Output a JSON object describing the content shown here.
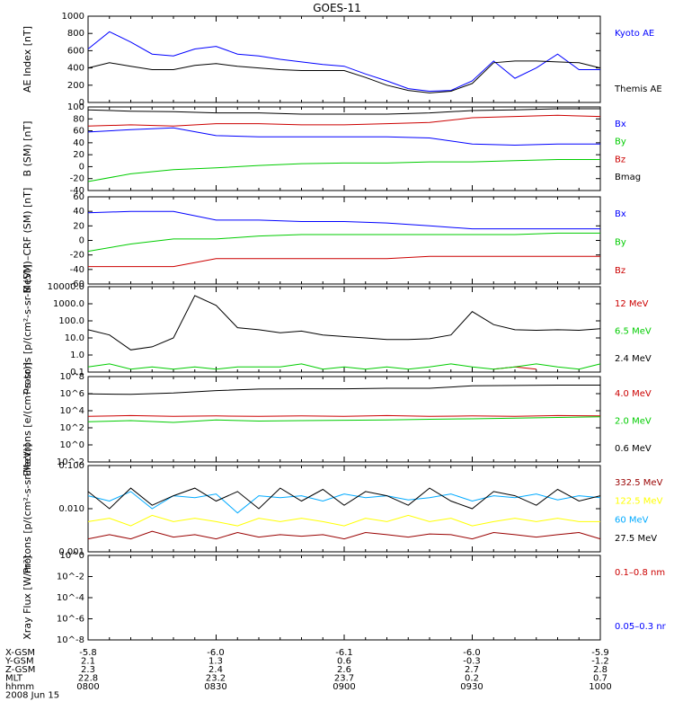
{
  "title": "GOES-11",
  "footer": {
    "date": "2008 Jun 15",
    "rows": [
      {
        "label": "X-GSM",
        "values": [
          "-5.8",
          "-6.0",
          "-6.1",
          "-6.0",
          "-5.9"
        ]
      },
      {
        "label": "Y-GSM",
        "values": [
          "2.1",
          "1.3",
          "0.6",
          "-0.3",
          "-1.2"
        ]
      },
      {
        "label": "Z-GSM",
        "values": [
          "2.3",
          "2.4",
          "2.6",
          "2.7",
          "2.8"
        ]
      },
      {
        "label": "MLT",
        "values": [
          "22.8",
          "23.2",
          "23.7",
          "0.2",
          "0.7"
        ]
      },
      {
        "label": "hhmm",
        "values": [
          "0800",
          "0830",
          "0900",
          "0930",
          "1000"
        ]
      }
    ]
  },
  "colors": {
    "black": "#000000",
    "blue": "#0000ff",
    "red": "#cc0000",
    "green": "#00cc00",
    "yellow": "#ffff00",
    "cyan": "#00aaff",
    "darkred": "#990000"
  },
  "chart_data": [
    {
      "type": "line",
      "ylabel": "AE Index [nT]",
      "ylim": [
        0,
        1000
      ],
      "yticks": [
        "1000",
        "800",
        "600",
        "400",
        "200",
        "0"
      ],
      "legend": [
        "Kyoto AE",
        "Themis AE"
      ],
      "x": [
        0,
        5,
        10,
        15,
        20,
        25,
        30,
        35,
        40,
        45,
        50,
        55,
        60,
        65,
        70,
        75,
        80,
        85,
        90,
        95,
        100,
        105,
        110,
        115,
        120
      ],
      "series": [
        {
          "name": "Kyoto AE",
          "color": "#0000ff",
          "values": [
            620,
            820,
            700,
            560,
            540,
            620,
            650,
            560,
            540,
            500,
            470,
            440,
            420,
            330,
            250,
            160,
            130,
            140,
            250,
            480,
            280,
            400,
            560,
            380,
            380
          ]
        },
        {
          "name": "Themis AE",
          "color": "#000000",
          "values": [
            400,
            460,
            420,
            380,
            380,
            430,
            450,
            420,
            400,
            380,
            370,
            370,
            370,
            290,
            200,
            140,
            110,
            130,
            220,
            460,
            480,
            480,
            470,
            460,
            400
          ]
        }
      ]
    },
    {
      "type": "line",
      "ylabel": "B (SM) [nT]",
      "ylim": [
        -40,
        100
      ],
      "yticks": [
        "100",
        "80",
        "60",
        "40",
        "20",
        "0",
        "-20",
        "-40"
      ],
      "legend": [
        "Bx",
        "By",
        "Bz",
        "Bmag"
      ],
      "x": [
        0,
        10,
        20,
        30,
        40,
        50,
        60,
        70,
        80,
        90,
        100,
        110,
        120
      ],
      "series": [
        {
          "name": "Bx",
          "color": "#0000ff",
          "values": [
            58,
            62,
            65,
            52,
            50,
            50,
            50,
            50,
            48,
            38,
            36,
            38,
            38
          ]
        },
        {
          "name": "By",
          "color": "#00cc00",
          "values": [
            -25,
            -12,
            -5,
            -2,
            2,
            5,
            6,
            6,
            8,
            8,
            10,
            12,
            12
          ]
        },
        {
          "name": "Bz",
          "color": "#cc0000",
          "values": [
            68,
            70,
            68,
            72,
            72,
            70,
            70,
            72,
            74,
            82,
            84,
            86,
            84
          ]
        },
        {
          "name": "Bmag",
          "color": "#000000",
          "values": [
            95,
            93,
            92,
            90,
            90,
            88,
            88,
            88,
            90,
            94,
            95,
            97,
            97
          ]
        }
      ]
    },
    {
      "type": "line",
      "ylabel": "B (SM)–CRF (SM) [nT]",
      "ylim": [
        -60,
        60
      ],
      "yticks": [
        "60",
        "40",
        "20",
        "0",
        "-20",
        "-40",
        "-60"
      ],
      "legend": [
        "Bx",
        "By",
        "Bz"
      ],
      "x": [
        0,
        10,
        20,
        30,
        40,
        50,
        60,
        70,
        80,
        90,
        100,
        110,
        120
      ],
      "series": [
        {
          "name": "Bx",
          "color": "#0000ff",
          "values": [
            38,
            40,
            40,
            28,
            28,
            26,
            26,
            24,
            20,
            16,
            16,
            16,
            16
          ]
        },
        {
          "name": "By",
          "color": "#00cc00",
          "values": [
            -15,
            -5,
            2,
            2,
            6,
            8,
            8,
            8,
            8,
            8,
            8,
            10,
            10
          ]
        },
        {
          "name": "Bz",
          "color": "#cc0000",
          "values": [
            -36,
            -36,
            -36,
            -25,
            -25,
            -25,
            -25,
            -25,
            -22,
            -22,
            -22,
            -22,
            -22
          ]
        }
      ]
    },
    {
      "type": "line",
      "ylabel": "Protons [p/(cm²-s-sr-MeV)]",
      "ylim": [
        0.1,
        10000
      ],
      "log": true,
      "yticks": [
        "10000.0",
        "1000.0",
        "100.0",
        "10.0",
        "1.0",
        "0.1"
      ],
      "legend": [
        "12 MeV",
        "6.5 MeV",
        "2.4 MeV"
      ],
      "x": [
        0,
        5,
        10,
        15,
        20,
        25,
        30,
        35,
        40,
        45,
        50,
        55,
        60,
        65,
        70,
        75,
        80,
        85,
        90,
        95,
        100,
        105,
        110,
        115,
        120
      ],
      "series": [
        {
          "name": "12 MeV",
          "color": "#cc0000",
          "values": [
            null,
            null,
            null,
            null,
            null,
            null,
            null,
            null,
            null,
            null,
            null,
            null,
            null,
            null,
            null,
            null,
            null,
            null,
            null,
            0.15,
            0.2,
            0.15,
            null,
            null,
            null
          ]
        },
        {
          "name": "6.5 MeV",
          "color": "#00cc00",
          "values": [
            0.2,
            0.3,
            0.15,
            0.2,
            0.15,
            0.2,
            0.15,
            0.2,
            0.2,
            0.2,
            0.3,
            0.15,
            0.2,
            0.15,
            0.2,
            0.15,
            0.2,
            0.3,
            0.2,
            0.15,
            0.2,
            0.3,
            0.2,
            0.15,
            0.3
          ]
        },
        {
          "name": "2.4 MeV",
          "color": "#000000",
          "values": [
            30,
            15,
            2,
            3,
            10,
            3000,
            800,
            40,
            30,
            20,
            25,
            15,
            12,
            10,
            8,
            8,
            9,
            15,
            350,
            60,
            30,
            28,
            30,
            28,
            35
          ]
        }
      ]
    },
    {
      "type": "line",
      "ylabel": "Electrons [e/(cm²-s-sr)]",
      "ylim": [
        1e-06,
        100000000
      ],
      "log": true,
      "yticks": [
        "10^8",
        "10^6",
        "10^4",
        "10^2",
        "10^0",
        "10^-2"
      ],
      "legend": [
        "4.0 MeV",
        "2.0 MeV",
        "0.6 MeV"
      ],
      "x": [
        0,
        10,
        20,
        30,
        40,
        50,
        60,
        70,
        80,
        90,
        100,
        110,
        120
      ],
      "series": [
        {
          "name": "4.0 MeV",
          "color": "#cc0000",
          "values": [
            30,
            40,
            30,
            35,
            30,
            35,
            30,
            40,
            30,
            35,
            30,
            40,
            35
          ]
        },
        {
          "name": "2.0 MeV",
          "color": "#00cc00",
          "values": [
            4,
            6,
            3,
            8,
            5,
            6,
            7,
            8,
            10,
            12,
            15,
            20,
            25
          ]
        },
        {
          "name": "0.6 MeV",
          "color": "#000000",
          "values": [
            150000,
            120000,
            200000,
            500000,
            900000,
            1000000,
            1000000,
            1200000,
            1200000,
            3000000,
            3500000,
            4000000,
            4000000
          ]
        }
      ]
    },
    {
      "type": "line",
      "ylabel": "Protons [p/(cm²-s-sr-MeV)]",
      "ylim": [
        0.001,
        0.1
      ],
      "log": true,
      "yticks": [
        "0.100",
        "0.010",
        "0.001"
      ],
      "legend": [
        "332.5 MeV",
        "122.5 MeV",
        "60 MeV",
        "27.5 MeV"
      ],
      "x": [
        0,
        5,
        10,
        15,
        20,
        25,
        30,
        35,
        40,
        45,
        50,
        55,
        60,
        65,
        70,
        75,
        80,
        85,
        90,
        95,
        100,
        105,
        110,
        115,
        120
      ],
      "series": [
        {
          "name": "332.5 MeV",
          "color": "#990000",
          "values": [
            0.002,
            0.0025,
            0.002,
            0.003,
            0.0022,
            0.0025,
            0.002,
            0.0028,
            0.0022,
            0.0025,
            0.0023,
            0.0025,
            0.002,
            0.0028,
            0.0025,
            0.0022,
            0.0026,
            0.0025,
            0.002,
            0.0028,
            0.0025,
            0.0022,
            0.0025,
            0.0028,
            0.002
          ]
        },
        {
          "name": "122.5 MeV",
          "color": "#ffff00",
          "values": [
            0.005,
            0.006,
            0.004,
            0.007,
            0.005,
            0.006,
            0.005,
            0.004,
            0.006,
            0.005,
            0.006,
            0.005,
            0.004,
            0.006,
            0.005,
            0.007,
            0.005,
            0.006,
            0.004,
            0.005,
            0.006,
            0.005,
            0.006,
            0.005,
            0.005
          ]
        },
        {
          "name": "60 MeV",
          "color": "#00aaff",
          "values": [
            0.02,
            0.015,
            0.025,
            0.01,
            0.02,
            0.018,
            0.022,
            0.008,
            0.02,
            0.018,
            0.02,
            0.015,
            0.022,
            0.018,
            0.02,
            0.016,
            0.018,
            0.022,
            0.015,
            0.02,
            0.018,
            0.022,
            0.016,
            0.02,
            0.018
          ]
        },
        {
          "name": "27.5 MeV",
          "color": "#000000",
          "values": [
            0.025,
            0.01,
            0.03,
            0.012,
            0.02,
            0.03,
            0.015,
            0.025,
            0.01,
            0.03,
            0.015,
            0.028,
            0.012,
            0.025,
            0.02,
            0.012,
            0.03,
            0.015,
            0.01,
            0.025,
            0.02,
            0.012,
            0.028,
            0.015,
            0.02
          ]
        }
      ]
    },
    {
      "type": "line",
      "ylabel": "Xray Flux [W/m²]",
      "ylim": [
        1e-08,
        1
      ],
      "log": true,
      "yticks": [
        "10^0",
        "10^-2",
        "10^-4",
        "10^-6",
        "10^-8"
      ],
      "legend": [
        "0.1–0.8 nm",
        "0.05–0.3 nr"
      ],
      "series": []
    }
  ]
}
